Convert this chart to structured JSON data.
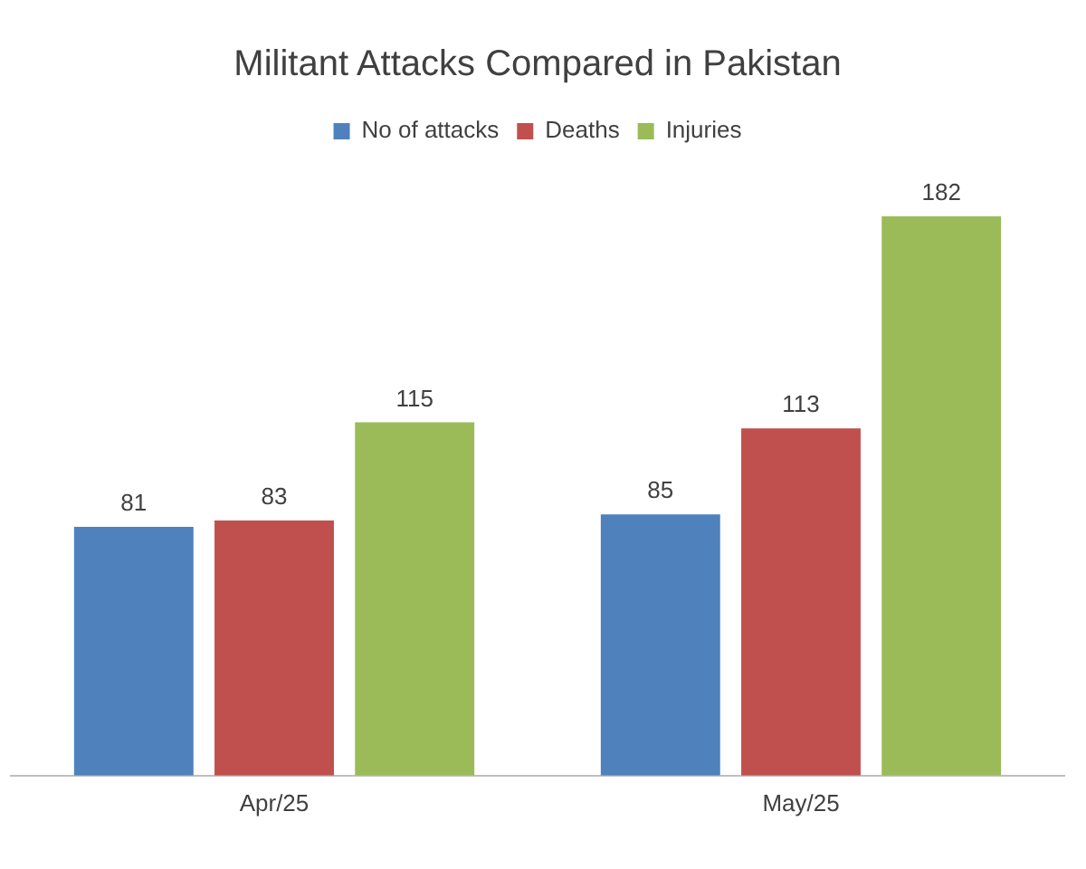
{
  "chart_data": {
    "type": "bar",
    "title": "Militant Attacks Compared in Pakistan",
    "categories": [
      "Apr/25",
      "May/25"
    ],
    "series": [
      {
        "name": "No of attacks",
        "color": "#4f81bd",
        "values": [
          81,
          85
        ]
      },
      {
        "name": "Deaths",
        "color": "#c0504d",
        "values": [
          83,
          113
        ]
      },
      {
        "name": "Injuries",
        "color": "#9bbb59",
        "values": [
          115,
          182
        ]
      }
    ],
    "data_labels": true,
    "legend": "top",
    "grid": false
  }
}
